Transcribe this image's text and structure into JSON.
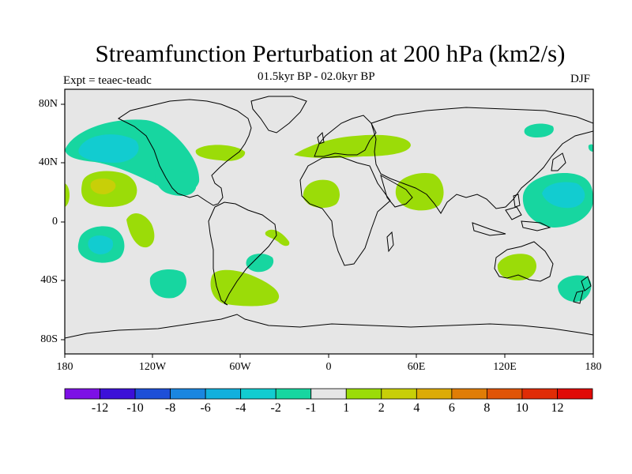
{
  "title": "Streamfunction Perturbation at 200 hPa (km2/s)",
  "subtitle": "01.5kyr BP - 02.0kyr BP",
  "left_label": "Expt = teaec-teadc",
  "right_label": "DJF",
  "lat_ticks": [
    "80N",
    "40N",
    "0",
    "40S",
    "80S"
  ],
  "lon_ticks": [
    "180",
    "120W",
    "60W",
    "0",
    "60E",
    "120E",
    "180"
  ],
  "colorbar": {
    "labels": [
      "-12",
      "-10",
      "-8",
      "-6",
      "-4",
      "-2",
      "-1",
      "1",
      "2",
      "4",
      "6",
      "8",
      "10",
      "12"
    ],
    "colors": [
      "#7d10e6",
      "#3c10d8",
      "#1d4fd8",
      "#1a86e0",
      "#12b0dd",
      "#12ccd0",
      "#17d6a0",
      "#e6e6e6",
      "#9bdc08",
      "#c8cf08",
      "#dcab06",
      "#e07d06",
      "#e05406",
      "#e02c06",
      "#e00a06"
    ]
  },
  "colors": {
    "land_ocean_background": "#e6e6e6",
    "coastline": "#000000"
  },
  "chart_data": {
    "type": "contour-map",
    "variable": "Streamfunction Perturbation at 200 hPa",
    "units": "km2/s",
    "period": "01.5kyr BP - 02.0kyr BP",
    "season": "DJF",
    "levels": [
      -12,
      -10,
      -8,
      -6,
      -4,
      -2,
      -1,
      1,
      2,
      4,
      6,
      8,
      10,
      12
    ],
    "lon_range": [
      -180,
      180
    ],
    "lat_range": [
      -90,
      90
    ],
    "anomaly_centers": [
      {
        "lon": -150,
        "lat": 50,
        "value": -4
      },
      {
        "lon": -152,
        "lat": 25,
        "value": 4
      },
      {
        "lon": -115,
        "lat": 23,
        "value": -2
      },
      {
        "lon": -145,
        "lat": -15,
        "value": -4
      },
      {
        "lon": -128,
        "lat": -10,
        "value": 2
      },
      {
        "lon": -108,
        "lat": -42,
        "value": -2
      },
      {
        "lon": -70,
        "lat": 47,
        "value": 2
      },
      {
        "lon": -45,
        "lat": -25,
        "value": -2
      },
      {
        "lon": -38,
        "lat": -10,
        "value": 2
      },
      {
        "lon": -58,
        "lat": -48,
        "value": 2
      },
      {
        "lon": 3,
        "lat": 52,
        "value": 2
      },
      {
        "lon": -3,
        "lat": 17,
        "value": 2
      },
      {
        "lon": 63,
        "lat": 20,
        "value": 2
      },
      {
        "lon": 128,
        "lat": -27,
        "value": 2
      },
      {
        "lon": 160,
        "lat": 18,
        "value": -4
      },
      {
        "lon": 148,
        "lat": 60,
        "value": -2
      },
      {
        "lon": 168,
        "lat": -45,
        "value": -2
      }
    ]
  }
}
